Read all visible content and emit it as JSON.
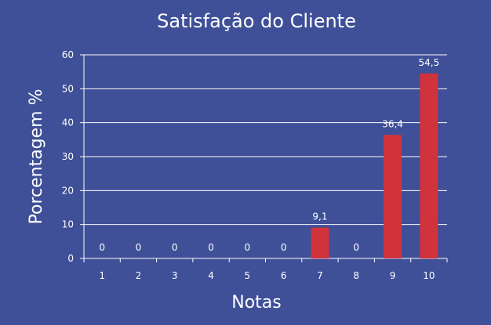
{
  "chart_data": {
    "type": "bar",
    "title": "Satisfação do Cliente",
    "xlabel": "Notas",
    "ylabel": "Porcentagem %",
    "categories": [
      "1",
      "2",
      "3",
      "4",
      "5",
      "6",
      "7",
      "8",
      "9",
      "10"
    ],
    "values": [
      0,
      0,
      0,
      0,
      0,
      0,
      9.1,
      0,
      36.4,
      54.5
    ],
    "data_labels": [
      "0",
      "0",
      "0",
      "0",
      "0",
      "0",
      "9,1",
      "0",
      "36,4",
      "54,5"
    ],
    "ylim": [
      0,
      60
    ],
    "yticks": [
      "0",
      "10",
      "20",
      "30",
      "40",
      "50",
      "60"
    ],
    "grid": true,
    "legend": "none",
    "colors": {
      "background": "#3f4f98",
      "bar": "#d1333d",
      "grid": "#ffffff",
      "text": "#ffffff"
    }
  }
}
